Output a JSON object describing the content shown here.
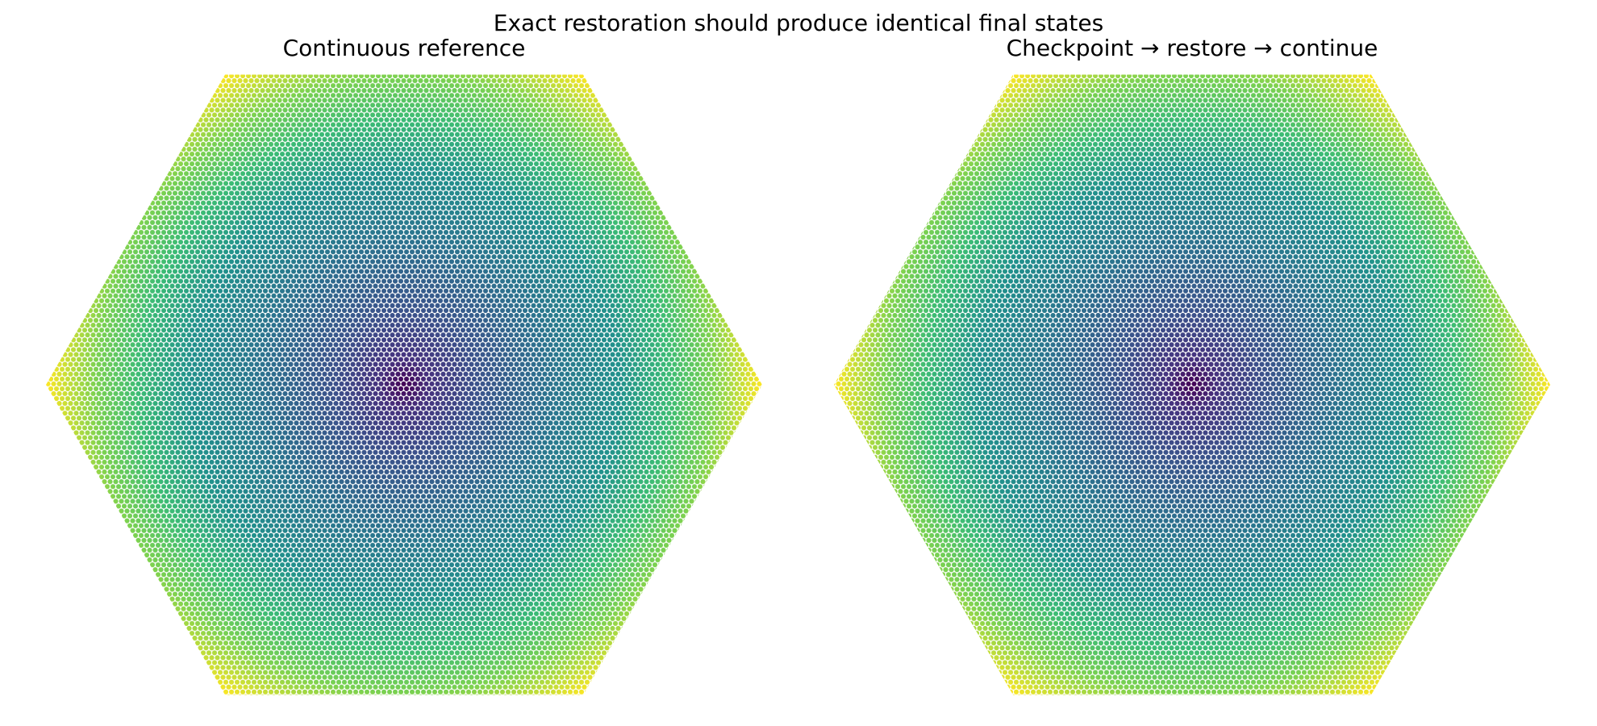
{
  "title": "Exact restoration should produce identical final states",
  "panels": [
    {
      "title": "Continuous reference"
    },
    {
      "title": "Checkpoint → restore → continue"
    }
  ]
}
